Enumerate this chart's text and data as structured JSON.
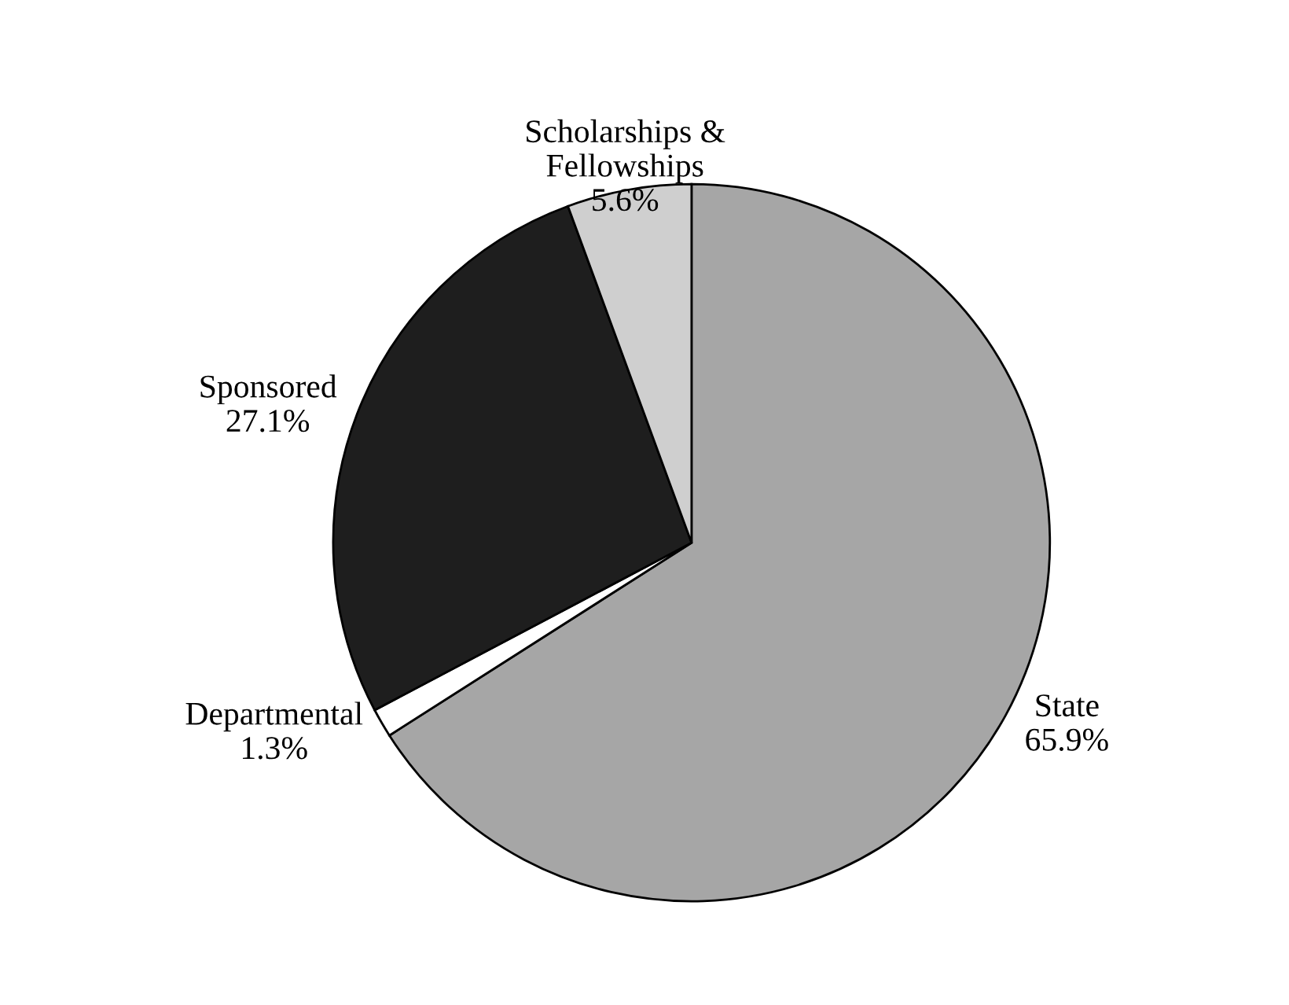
{
  "chart_data": {
    "type": "pie",
    "categories": [
      "State",
      "Departmental",
      "Sponsored",
      "Scholarships & Fellowships"
    ],
    "values": [
      65.9,
      1.3,
      27.1,
      5.6
    ],
    "colors": [
      "#a6a6a6",
      "#ffffff",
      "#1e1e1e",
      "#cfcfcf"
    ],
    "value_labels": [
      "65.9%",
      "1.3%",
      "27.1%",
      "5.6%"
    ]
  }
}
